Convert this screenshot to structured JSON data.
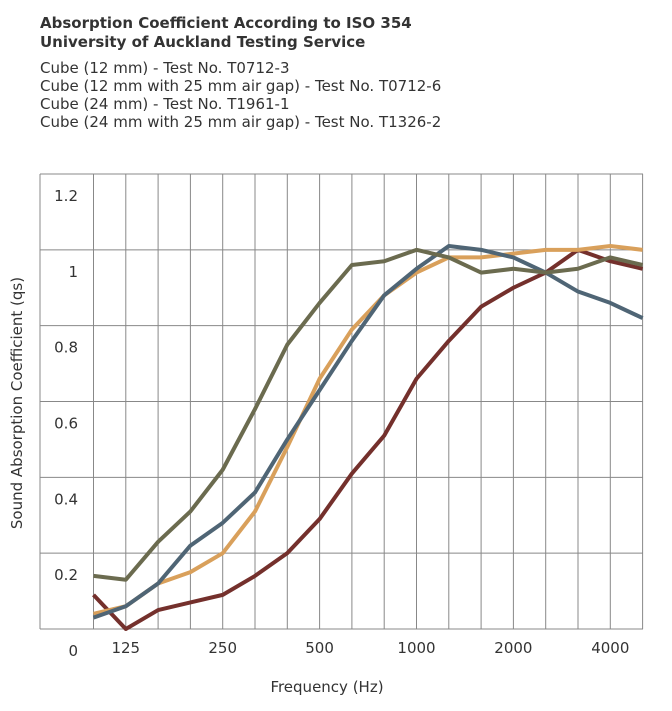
{
  "chart_data": {
    "type": "line",
    "title": "Absorption Coefficient According to ISO 354",
    "subtitle": "University of Auckland Testing Service",
    "x_label": "Frequency (Hz)",
    "y_label": "Sound Absorption Coefficient (qs)",
    "categories": [
      null,
      125,
      null,
      null,
      250,
      null,
      null,
      500,
      null,
      null,
      1000,
      null,
      null,
      2000,
      null,
      null,
      4000,
      null
    ],
    "ylim": [
      0,
      1.2
    ],
    "yticks": [
      0,
      0.2,
      0.4,
      0.6,
      0.8,
      1,
      1.2
    ],
    "grid": true,
    "series": [
      {
        "name": "Cube (12 mm) - Test No. T0712-3",
        "color": "#74302c",
        "values": [
          0.09,
          0.0,
          0.05,
          0.07,
          0.09,
          0.14,
          0.2,
          0.29,
          0.41,
          0.51,
          0.66,
          0.76,
          0.85,
          0.9,
          0.94,
          1.0,
          0.97,
          0.95
        ]
      },
      {
        "name": "Cube (12 mm with 25 mm air gap) - Test No. T0712-6",
        "color": "#d9a05b",
        "values": [
          0.04,
          0.06,
          0.12,
          0.15,
          0.2,
          0.31,
          0.48,
          0.66,
          0.79,
          0.88,
          0.94,
          0.98,
          0.98,
          0.99,
          1.0,
          1.0,
          1.01,
          1.0
        ]
      },
      {
        "name": "Cube (24 mm) - Test No. T1961-1",
        "color": "#4f6575",
        "values": [
          0.03,
          0.06,
          0.12,
          0.22,
          0.28,
          0.36,
          0.5,
          0.63,
          0.76,
          0.88,
          0.95,
          1.01,
          1.0,
          0.98,
          0.94,
          0.89,
          0.86,
          0.82
        ]
      },
      {
        "name": "Cube (24 mm with 25 mm air gap) - Test No. T1326-2",
        "color": "#6b6b4f",
        "values": [
          0.14,
          0.13,
          0.23,
          0.31,
          0.42,
          0.58,
          0.75,
          0.86,
          0.96,
          0.97,
          1.0,
          0.98,
          0.94,
          0.95,
          0.94,
          0.95,
          0.98,
          0.96
        ]
      }
    ]
  }
}
